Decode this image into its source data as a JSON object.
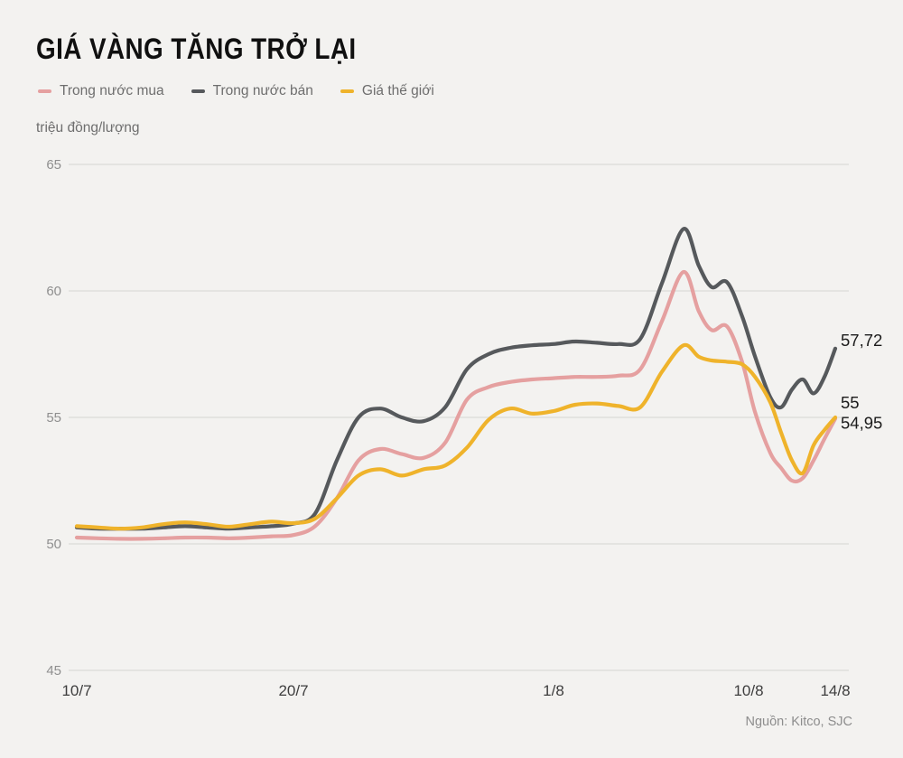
{
  "header": {
    "title": "GIÁ VÀNG TĂNG TRỞ LẠI"
  },
  "legend": {
    "items": [
      {
        "label": "Trong nước mua",
        "color": "#e5a0a0"
      },
      {
        "label": "Trong nước bán",
        "color": "#56595c"
      },
      {
        "label": "Giá thế giới",
        "color": "#efb32b"
      }
    ]
  },
  "footer": {
    "source": "Nguồn: Kitco, SJC"
  },
  "chart_data": {
    "type": "line",
    "title": "GIÁ VÀNG TĂNG TRỞ LẠI",
    "xlabel": "",
    "ylabel": "triệu đồng/lượng",
    "ylim": [
      45,
      65
    ],
    "y_ticks": [
      65,
      60,
      55,
      50,
      45
    ],
    "x_ticks": [
      {
        "label": "10/7",
        "day": 0
      },
      {
        "label": "20/7",
        "day": 10
      },
      {
        "label": "1/8",
        "day": 22
      },
      {
        "label": "10/8",
        "day": 31
      },
      {
        "label": "14/8",
        "day": 35
      }
    ],
    "grid": true,
    "legend_position": "top",
    "x_days": [
      0,
      1,
      2,
      3,
      4,
      5,
      6,
      7,
      8,
      9,
      10,
      11,
      12,
      13,
      14,
      15,
      16,
      17,
      18,
      19,
      20,
      21,
      22,
      23,
      24,
      25,
      26,
      27,
      28,
      28.7,
      29.3,
      30,
      30.7,
      31.3,
      32,
      32.5,
      33,
      33.5,
      34,
      34.5,
      35
    ],
    "series": [
      {
        "id": "trong-nuoc-mua",
        "name": "Trong nước mua",
        "color": "#e5a0a0",
        "end_label": "54,95",
        "end_value": 54.95,
        "label_dy": 5,
        "values": [
          50.25,
          50.22,
          50.2,
          50.2,
          50.22,
          50.25,
          50.25,
          50.22,
          50.25,
          50.3,
          50.35,
          50.7,
          51.8,
          53.3,
          53.75,
          53.55,
          53.4,
          54.0,
          55.7,
          56.2,
          56.4,
          56.5,
          56.55,
          56.6,
          56.6,
          56.65,
          56.9,
          58.8,
          60.75,
          59.2,
          58.45,
          58.6,
          57.2,
          55.2,
          53.6,
          53.0,
          52.5,
          52.6,
          53.3,
          54.15,
          54.95
        ]
      },
      {
        "id": "trong-nuoc-ban",
        "name": "Trong nước bán",
        "color": "#56595c",
        "end_label": "57,72",
        "end_value": 57.72,
        "label_dy": -9,
        "values": [
          50.65,
          50.6,
          50.6,
          50.6,
          50.65,
          50.7,
          50.65,
          50.6,
          50.65,
          50.7,
          50.8,
          51.2,
          53.3,
          55.0,
          55.35,
          55.0,
          54.85,
          55.4,
          56.9,
          57.5,
          57.75,
          57.85,
          57.9,
          58.0,
          57.95,
          57.9,
          58.1,
          60.3,
          62.45,
          61.0,
          60.15,
          60.35,
          59.0,
          57.4,
          55.8,
          55.4,
          56.1,
          56.5,
          55.95,
          56.6,
          57.72
        ]
      },
      {
        "id": "gia-the-gioi",
        "name": "Giá thế giới",
        "color": "#efb32b",
        "end_label": "55",
        "end_value": 55.0,
        "label_dy": -16,
        "values": [
          50.7,
          50.65,
          50.6,
          50.65,
          50.78,
          50.85,
          50.78,
          50.68,
          50.78,
          50.88,
          50.82,
          51.0,
          51.8,
          52.7,
          52.95,
          52.7,
          52.95,
          53.1,
          53.8,
          54.9,
          55.35,
          55.15,
          55.25,
          55.5,
          55.55,
          55.45,
          55.4,
          56.8,
          57.85,
          57.4,
          57.25,
          57.2,
          57.1,
          56.6,
          55.6,
          54.4,
          53.3,
          52.8,
          53.9,
          54.5,
          55.0
        ]
      }
    ]
  }
}
